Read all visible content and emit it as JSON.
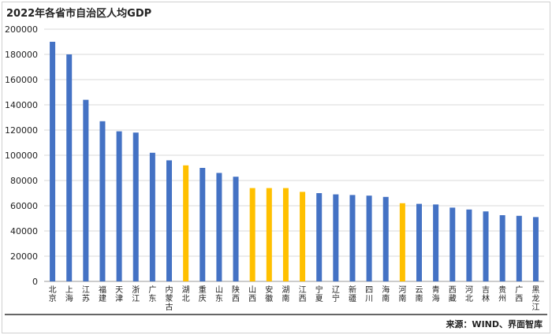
{
  "chart_data": {
    "type": "bar",
    "title": "2022年各省市自治区人均GDP",
    "xlabel": "",
    "ylabel": "",
    "ylim": [
      0,
      200000
    ],
    "yticks": [
      0,
      20000,
      40000,
      60000,
      80000,
      100000,
      120000,
      140000,
      160000,
      180000,
      200000
    ],
    "grid": true,
    "legend": "none",
    "categories": [
      "北京",
      "上海",
      "江苏",
      "福建",
      "天津",
      "浙江",
      "广东",
      "内蒙古",
      "湖北",
      "重庆",
      "山东",
      "陕西",
      "山西",
      "安徽",
      "湖南",
      "江西",
      "宁夏",
      "辽宁",
      "新疆",
      "四川",
      "海南",
      "河南",
      "云南",
      "青海",
      "西藏",
      "河北",
      "吉林",
      "贵州",
      "广西",
      "黑龙江"
    ],
    "values": [
      190000,
      180000,
      144000,
      127000,
      119000,
      118000,
      102000,
      96000,
      92000,
      90000,
      86000,
      83000,
      74000,
      74000,
      74000,
      71000,
      70000,
      69000,
      68500,
      68000,
      67000,
      62000,
      61500,
      61000,
      58500,
      57000,
      55500,
      52500,
      52000,
      51000
    ],
    "highlight": [
      false,
      false,
      false,
      false,
      false,
      false,
      false,
      false,
      true,
      false,
      false,
      false,
      true,
      true,
      true,
      true,
      false,
      false,
      false,
      false,
      false,
      true,
      false,
      false,
      false,
      false,
      false,
      false,
      false,
      false
    ],
    "colors": {
      "default": "#4472C4",
      "highlight": "#FFC000",
      "grid": "#d9d9d9",
      "axis": "#999999",
      "text": "#222222"
    }
  },
  "source": "来源：WIND、界面智库"
}
